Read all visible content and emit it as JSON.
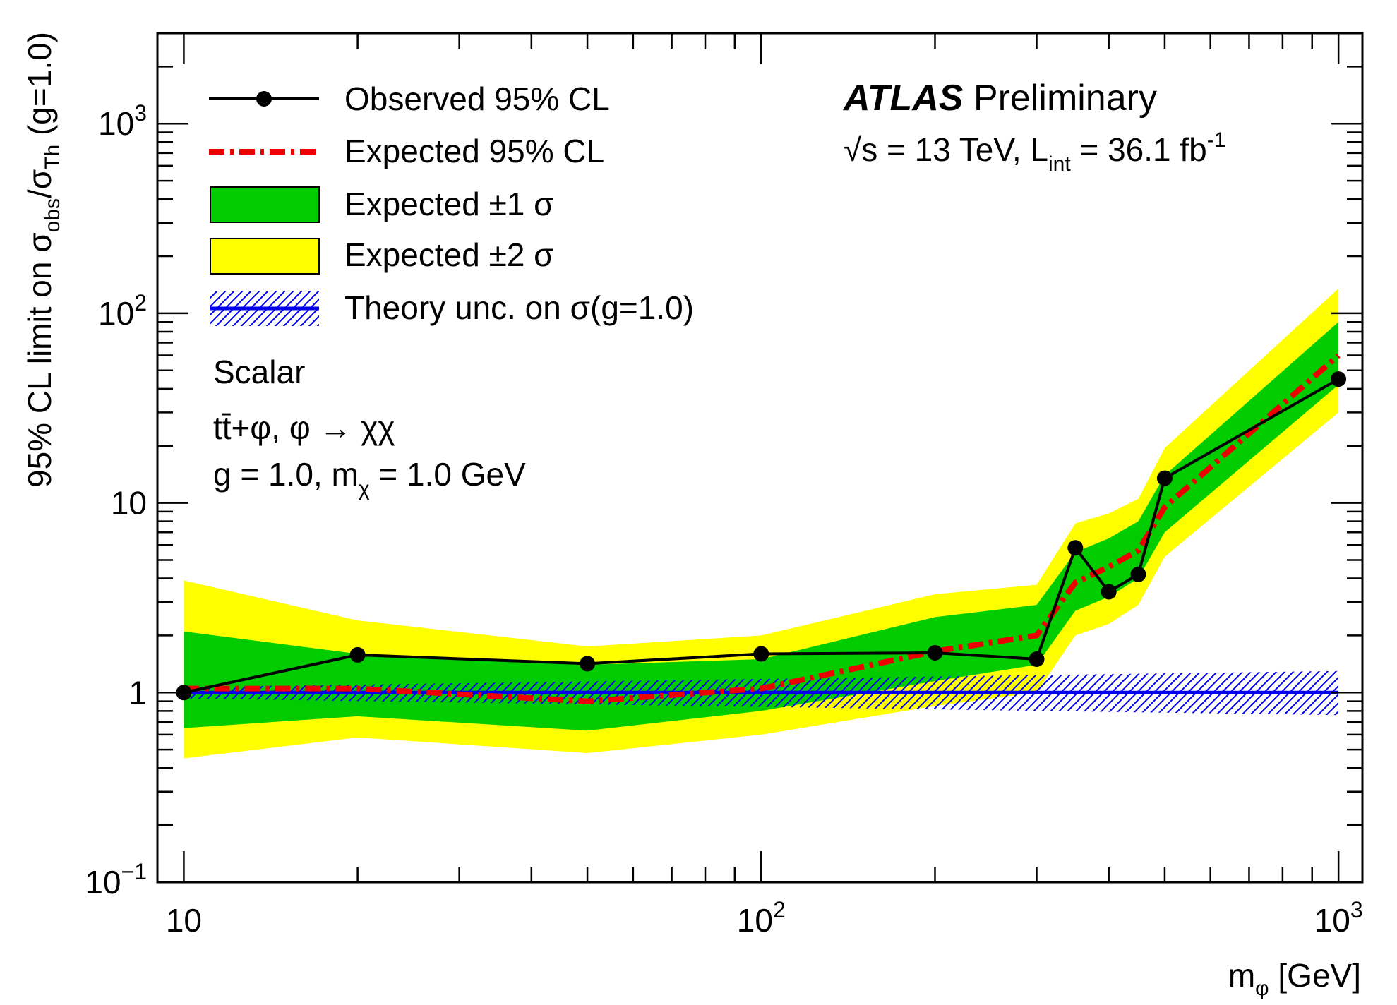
{
  "chart_data": {
    "type": "line",
    "x_scale": "log",
    "y_scale": "log",
    "xlim": [
      9,
      1100
    ],
    "ylim": [
      0.1,
      3000
    ],
    "xlabel": {
      "main": "m",
      "sub": "φ",
      "unit": " [GeV]"
    },
    "ylabel": {
      "prefix": "95% CL limit on σ",
      "sub1": "obs",
      "mid": "/σ",
      "sub2": "Th",
      "suffix": " (g=1.0)"
    },
    "x_ticks": [
      {
        "value": 10,
        "base": "10",
        "exp": ""
      },
      {
        "value": 100,
        "base": "10",
        "exp": "2"
      },
      {
        "value": 1000,
        "base": "10",
        "exp": "3"
      }
    ],
    "y_ticks": [
      {
        "value": 0.1,
        "base": "10",
        "exp": "−1"
      },
      {
        "value": 1,
        "base": "1",
        "exp": ""
      },
      {
        "value": 10,
        "base": "10",
        "exp": ""
      },
      {
        "value": 100,
        "base": "10",
        "exp": "2"
      },
      {
        "value": 1000,
        "base": "10",
        "exp": "3"
      }
    ],
    "x": [
      10,
      20,
      50,
      100,
      200,
      300,
      350,
      400,
      450,
      500,
      1000
    ],
    "series": [
      {
        "name": "Observed 95% CL",
        "values": [
          1.0,
          1.58,
          1.42,
          1.6,
          1.62,
          1.5,
          5.8,
          3.4,
          4.2,
          13.5,
          45
        ]
      },
      {
        "name": "Expected 95% CL",
        "values": [
          1.05,
          1.05,
          0.9,
          1.05,
          1.65,
          2.0,
          3.8,
          4.6,
          5.6,
          9.5,
          60
        ]
      },
      {
        "name": "Expected ±1 σ",
        "lower": [
          0.65,
          0.75,
          0.63,
          0.8,
          1.15,
          1.4,
          2.7,
          3.2,
          4.0,
          7.0,
          42
        ],
        "upper": [
          2.1,
          1.6,
          1.4,
          1.5,
          2.5,
          2.9,
          5.5,
          6.5,
          8.0,
          14,
          90
        ]
      },
      {
        "name": "Expected ±2 σ",
        "lower": [
          0.45,
          0.58,
          0.48,
          0.6,
          0.85,
          1.0,
          2.0,
          2.3,
          2.9,
          5.2,
          30
        ],
        "upper": [
          3.9,
          2.4,
          1.75,
          2.0,
          3.3,
          3.7,
          7.8,
          8.8,
          10.5,
          19.5,
          135
        ]
      },
      {
        "name": "Theory unc. on σ(g=1.0)",
        "x": [
          10,
          1000
        ],
        "values": [
          1.0,
          1.0
        ],
        "band_lower": [
          0.93,
          0.76
        ],
        "band_upper": [
          1.07,
          1.3
        ]
      }
    ],
    "legend": {
      "placement": "top-left",
      "entries": [
        {
          "label": "Observed 95% CL"
        },
        {
          "label": "Expected 95% CL"
        },
        {
          "label": "Expected ±1 σ"
        },
        {
          "label": "Expected ±2 σ"
        },
        {
          "label": "Theory unc. on σ(g=1.0)"
        }
      ]
    },
    "annotations": {
      "atlas": "ATLAS",
      "preliminary": " Preliminary",
      "energy": {
        "sqrt": "√s",
        "text": " = 13 TeV, L",
        "sub": "int",
        "text2": " = 36.1 fb",
        "sup": "-1"
      },
      "model": "Scalar",
      "process": "tt̄+φ, φ → χχ",
      "params": {
        "text": "g = 1.0,  m",
        "sub": "χ",
        "text2": " = 1.0 GeV"
      }
    },
    "colors": {
      "observed": "#000000",
      "expected": "#ee0000",
      "band1": "#00cc00",
      "band2": "#ffff00",
      "theory": "#0000ee",
      "frame": "#000000"
    },
    "grid": false
  }
}
